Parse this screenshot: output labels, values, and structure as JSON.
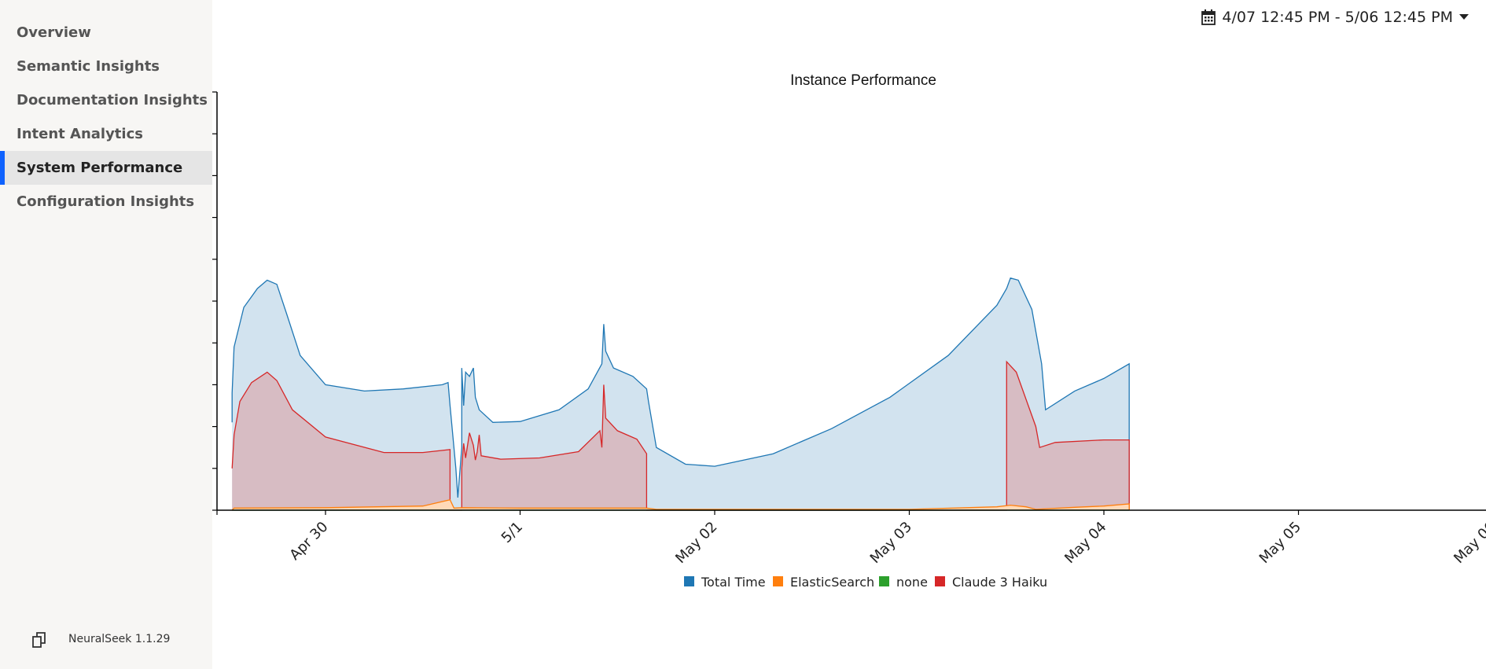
{
  "sidebar": {
    "items": [
      {
        "label": "Overview",
        "active": false
      },
      {
        "label": "Semantic Insights",
        "active": false
      },
      {
        "label": "Documentation Insights",
        "active": false
      },
      {
        "label": "Intent Analytics",
        "active": false
      },
      {
        "label": "System Performance",
        "active": true
      },
      {
        "label": "Configuration Insights",
        "active": false
      }
    ],
    "footer": {
      "version": "NeuralSeek 1.1.29",
      "icon": "copy-icon"
    },
    "accent_color": "#0f62fe"
  },
  "header": {
    "date_range": "4/07 12:45 PM - 5/06 12:45 PM",
    "calendar_icon": "calendar-icon",
    "dropdown_icon": "caret-down-icon"
  },
  "chart_data": {
    "type": "area",
    "title": "Instance Performance",
    "x_ticks": [
      "Apr 30",
      "5/1",
      "May 02",
      "May 03",
      "May 04",
      "May 05",
      "May 06"
    ],
    "x_tick_days": [
      0,
      1,
      2,
      3,
      4,
      5,
      6
    ],
    "xlim_days": [
      -0.56,
      6.05
    ],
    "ylim": [
      0,
      10
    ],
    "y_labels_visible": false,
    "legend_position": "bottom",
    "series": [
      {
        "name": "Total Time",
        "color": "#1f77b4",
        "fill": "#d2e3ef",
        "points": [
          [
            -0.48,
            2.1
          ],
          [
            -0.48,
            2.8
          ],
          [
            -0.47,
            3.9
          ],
          [
            -0.42,
            4.85
          ],
          [
            -0.35,
            5.3
          ],
          [
            -0.3,
            5.5
          ],
          [
            -0.25,
            5.4
          ],
          [
            -0.2,
            4.7
          ],
          [
            -0.13,
            3.7
          ],
          [
            0,
            3.0
          ],
          [
            0.2,
            2.85
          ],
          [
            0.4,
            2.9
          ],
          [
            0.6,
            3.0
          ],
          [
            0.63,
            3.05
          ],
          [
            0.64,
            2.5
          ],
          [
            0.67,
            1.0
          ],
          [
            0.68,
            0.3
          ],
          [
            0.7,
            1.5
          ],
          [
            0.7,
            3.4
          ],
          [
            0.71,
            2.5
          ],
          [
            0.72,
            3.3
          ],
          [
            0.74,
            3.2
          ],
          [
            0.76,
            3.4
          ],
          [
            0.77,
            2.7
          ],
          [
            0.79,
            2.4
          ],
          [
            0.86,
            2.1
          ],
          [
            1.0,
            2.12
          ],
          [
            1.2,
            2.4
          ],
          [
            1.35,
            2.9
          ],
          [
            1.42,
            3.5
          ],
          [
            1.43,
            4.45
          ],
          [
            1.44,
            3.8
          ],
          [
            1.48,
            3.4
          ],
          [
            1.58,
            3.2
          ],
          [
            1.65,
            2.9
          ],
          [
            1.66,
            2.6
          ],
          [
            1.7,
            1.5
          ],
          [
            1.85,
            1.1
          ],
          [
            2.0,
            1.05
          ],
          [
            2.3,
            1.35
          ],
          [
            2.6,
            1.95
          ],
          [
            2.9,
            2.7
          ],
          [
            3.2,
            3.7
          ],
          [
            3.45,
            4.9
          ],
          [
            3.5,
            5.3
          ],
          [
            3.52,
            5.55
          ],
          [
            3.56,
            5.5
          ],
          [
            3.63,
            4.8
          ],
          [
            3.68,
            3.5
          ],
          [
            3.7,
            2.4
          ],
          [
            3.85,
            2.85
          ],
          [
            4.0,
            3.15
          ],
          [
            4.13,
            3.5
          ],
          [
            4.13,
            0
          ]
        ]
      },
      {
        "name": "ElasticSearch",
        "color": "#ff7f0e",
        "fill": "#ffd9b8",
        "points": [
          [
            -0.48,
            0
          ],
          [
            -0.47,
            0.05
          ],
          [
            0,
            0.06
          ],
          [
            0.5,
            0.1
          ],
          [
            0.64,
            0.25
          ],
          [
            0.66,
            0.05
          ],
          [
            0.7,
            0.06
          ],
          [
            1.0,
            0.05
          ],
          [
            1.65,
            0.05
          ],
          [
            1.7,
            0.02
          ],
          [
            3.0,
            0.02
          ],
          [
            3.45,
            0.08
          ],
          [
            3.52,
            0.12
          ],
          [
            3.6,
            0.08
          ],
          [
            3.65,
            0.02
          ],
          [
            3.85,
            0.07
          ],
          [
            4.0,
            0.1
          ],
          [
            4.13,
            0.15
          ],
          [
            4.13,
            0
          ]
        ]
      },
      {
        "name": "none",
        "color": "#2ca02c",
        "fill": "#bfe4bf",
        "points": [
          [
            -0.48,
            0
          ],
          [
            4.13,
            0
          ]
        ]
      },
      {
        "name": "Claude 3 Haiku",
        "color": "#d62728",
        "fill": "#d7bcc3",
        "points": [
          [
            -0.48,
            1.0
          ],
          [
            -0.47,
            1.8
          ],
          [
            -0.44,
            2.6
          ],
          [
            -0.38,
            3.05
          ],
          [
            -0.3,
            3.3
          ],
          [
            -0.25,
            3.1
          ],
          [
            -0.17,
            2.4
          ],
          [
            0,
            1.75
          ],
          [
            0.3,
            1.38
          ],
          [
            0.5,
            1.38
          ],
          [
            0.64,
            1.45
          ],
          [
            0.64,
            0
          ],
          [
            0.7,
            0
          ],
          [
            0.7,
            1.0
          ],
          [
            0.71,
            1.6
          ],
          [
            0.72,
            1.25
          ],
          [
            0.74,
            1.85
          ],
          [
            0.76,
            1.55
          ],
          [
            0.77,
            1.2
          ],
          [
            0.78,
            1.4
          ],
          [
            0.79,
            1.8
          ],
          [
            0.8,
            1.3
          ],
          [
            0.9,
            1.22
          ],
          [
            1.1,
            1.25
          ],
          [
            1.3,
            1.4
          ],
          [
            1.41,
            1.9
          ],
          [
            1.42,
            1.5
          ],
          [
            1.43,
            3.0
          ],
          [
            1.44,
            2.2
          ],
          [
            1.5,
            1.9
          ],
          [
            1.6,
            1.7
          ],
          [
            1.65,
            1.35
          ],
          [
            1.65,
            0
          ],
          [
            3.5,
            0
          ],
          [
            3.5,
            3.55
          ],
          [
            3.55,
            3.3
          ],
          [
            3.65,
            2.0
          ],
          [
            3.67,
            1.5
          ],
          [
            3.75,
            1.62
          ],
          [
            4.0,
            1.68
          ],
          [
            4.13,
            1.68
          ],
          [
            4.13,
            0
          ]
        ]
      }
    ]
  }
}
